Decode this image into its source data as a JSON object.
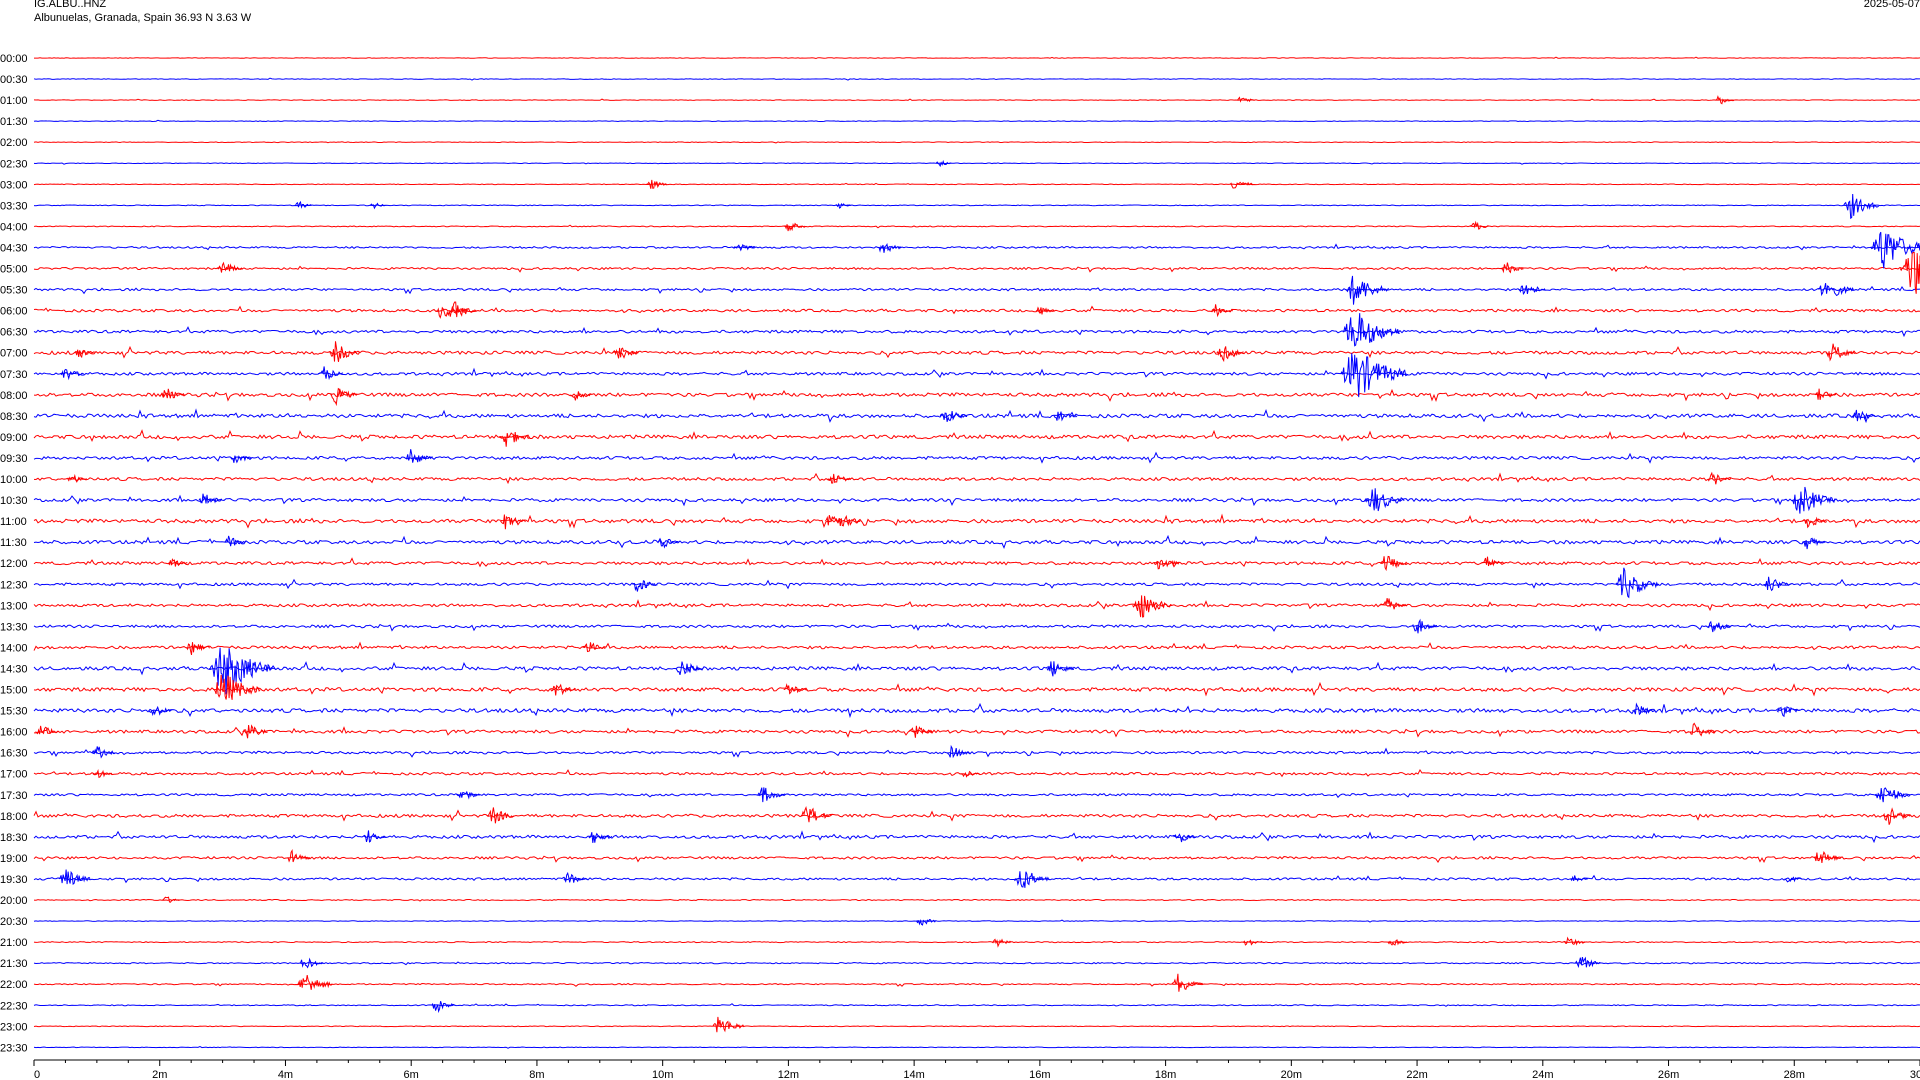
{
  "header": {
    "station": "IG.ALBU..HNZ",
    "location": "Albunuelas, Granada, Spain  36.93 N 3.63 W",
    "date": "2025-05-07"
  },
  "colors": {
    "trace_a": "#ff0000",
    "trace_b": "#0000ff",
    "axis": "#000000",
    "background": "#ffffff"
  },
  "chart_data": {
    "type": "line",
    "title": "",
    "xlabel": "",
    "ylabel": "",
    "xlim": [
      0,
      30
    ],
    "x_unit": "minutes",
    "x_tick_labels": [
      "0",
      "2m",
      "4m",
      "6m",
      "8m",
      "10m",
      "12m",
      "14m",
      "16m",
      "18m",
      "20m",
      "22m",
      "24m",
      "26m",
      "28m",
      "30"
    ],
    "minor_tick_step_min": 0.5,
    "row_interval_min": 30,
    "row_labels": [
      "00:00",
      "00:30",
      "01:00",
      "01:30",
      "02:00",
      "02:30",
      "03:00",
      "03:30",
      "04:00",
      "04:30",
      "05:00",
      "05:30",
      "06:00",
      "06:30",
      "07:00",
      "07:30",
      "08:00",
      "08:30",
      "09:00",
      "09:30",
      "10:00",
      "10:30",
      "11:00",
      "11:30",
      "12:00",
      "12:30",
      "13:00",
      "13:30",
      "14:00",
      "14:30",
      "15:00",
      "15:30",
      "16:00",
      "16:30",
      "17:00",
      "17:30",
      "18:00",
      "18:30",
      "19:00",
      "19:30",
      "20:00",
      "20:30",
      "21:00",
      "21:30",
      "22:00",
      "22:30",
      "23:00",
      "23:30"
    ],
    "row_colors": "alternating red (even rows) / blue (odd rows)",
    "activity_level": [
      0.3,
      0.3,
      0.3,
      0.3,
      0.3,
      0.3,
      0.35,
      0.4,
      0.45,
      0.9,
      1.0,
      1.1,
      1.3,
      1.4,
      1.6,
      1.4,
      1.7,
      1.8,
      1.8,
      1.5,
      1.5,
      1.5,
      1.8,
      1.7,
      1.5,
      1.3,
      1.4,
      1.3,
      1.4,
      1.7,
      1.8,
      1.9,
      1.5,
      1.2,
      1.2,
      1.1,
      1.5,
      1.5,
      1.2,
      1.1,
      0.5,
      0.35,
      0.5,
      0.6,
      0.6,
      0.5,
      0.35,
      0.3
    ],
    "events": [
      {
        "row": "01:00",
        "min": 19.2,
        "amp": 5
      },
      {
        "row": "01:00",
        "min": 26.8,
        "amp": 6
      },
      {
        "row": "02:30",
        "min": 14.4,
        "amp": 4
      },
      {
        "row": "03:00",
        "min": 9.8,
        "amp": 7
      },
      {
        "row": "03:00",
        "min": 19.1,
        "amp": 8
      },
      {
        "row": "03:30",
        "min": 4.2,
        "amp": 5
      },
      {
        "row": "03:30",
        "min": 5.4,
        "amp": 4
      },
      {
        "row": "03:30",
        "min": 12.8,
        "amp": 4
      },
      {
        "row": "03:30",
        "min": 28.9,
        "amp": 14
      },
      {
        "row": "04:00",
        "min": 12.0,
        "amp": 7
      },
      {
        "row": "04:00",
        "min": 22.9,
        "amp": 6
      },
      {
        "row": "04:30",
        "min": 11.2,
        "amp": 7
      },
      {
        "row": "04:30",
        "min": 13.5,
        "amp": 8
      },
      {
        "row": "04:30",
        "min": 29.4,
        "amp": 25
      },
      {
        "row": "05:00",
        "min": 3.0,
        "amp": 9
      },
      {
        "row": "05:00",
        "min": 23.4,
        "amp": 8
      },
      {
        "row": "05:00",
        "min": 29.9,
        "amp": 30
      },
      {
        "row": "05:30",
        "min": 21.0,
        "amp": 18
      },
      {
        "row": "05:30",
        "min": 23.7,
        "amp": 10
      },
      {
        "row": "05:30",
        "min": 28.5,
        "amp": 14
      },
      {
        "row": "06:00",
        "min": 6.5,
        "amp": 12
      },
      {
        "row": "06:00",
        "min": 6.7,
        "amp": 10
      },
      {
        "row": "06:00",
        "min": 16.0,
        "amp": 6
      },
      {
        "row": "06:00",
        "min": 18.8,
        "amp": 7
      },
      {
        "row": "06:30",
        "min": 21.0,
        "amp": 25
      },
      {
        "row": "07:00",
        "min": 0.7,
        "amp": 7
      },
      {
        "row": "07:00",
        "min": 4.8,
        "amp": 12
      },
      {
        "row": "07:00",
        "min": 9.3,
        "amp": 9
      },
      {
        "row": "07:00",
        "min": 18.9,
        "amp": 10
      },
      {
        "row": "07:00",
        "min": 28.6,
        "amp": 11
      },
      {
        "row": "07:30",
        "min": 0.5,
        "amp": 8
      },
      {
        "row": "07:30",
        "min": 4.6,
        "amp": 9
      },
      {
        "row": "07:30",
        "min": 21.0,
        "amp": 30
      },
      {
        "row": "08:00",
        "min": 2.1,
        "amp": 8
      },
      {
        "row": "08:00",
        "min": 4.8,
        "amp": 10
      },
      {
        "row": "08:00",
        "min": 8.6,
        "amp": 7
      },
      {
        "row": "08:00",
        "min": 28.4,
        "amp": 7
      },
      {
        "row": "08:30",
        "min": 14.5,
        "amp": 10
      },
      {
        "row": "08:30",
        "min": 16.3,
        "amp": 8
      },
      {
        "row": "08:30",
        "min": 29.0,
        "amp": 8
      },
      {
        "row": "09:00",
        "min": 7.5,
        "amp": 12
      },
      {
        "row": "09:30",
        "min": 6.0,
        "amp": 10
      },
      {
        "row": "09:30",
        "min": 3.2,
        "amp": 7
      },
      {
        "row": "10:00",
        "min": 0.6,
        "amp": 6
      },
      {
        "row": "10:00",
        "min": 12.7,
        "amp": 8
      },
      {
        "row": "10:00",
        "min": 26.7,
        "amp": 8
      },
      {
        "row": "10:30",
        "min": 2.7,
        "amp": 8
      },
      {
        "row": "10:30",
        "min": 21.3,
        "amp": 16
      },
      {
        "row": "10:30",
        "min": 28.1,
        "amp": 18
      },
      {
        "row": "11:00",
        "min": 7.5,
        "amp": 9
      },
      {
        "row": "11:00",
        "min": 12.7,
        "amp": 14
      },
      {
        "row": "11:00",
        "min": 28.2,
        "amp": 9
      },
      {
        "row": "11:30",
        "min": 3.1,
        "amp": 7
      },
      {
        "row": "11:30",
        "min": 10.0,
        "amp": 7
      },
      {
        "row": "11:30",
        "min": 28.2,
        "amp": 8
      },
      {
        "row": "12:00",
        "min": 2.2,
        "amp": 6
      },
      {
        "row": "12:00",
        "min": 17.9,
        "amp": 9
      },
      {
        "row": "12:00",
        "min": 21.5,
        "amp": 10
      },
      {
        "row": "12:00",
        "min": 23.1,
        "amp": 8
      },
      {
        "row": "12:30",
        "min": 9.6,
        "amp": 9
      },
      {
        "row": "12:30",
        "min": 25.3,
        "amp": 18
      },
      {
        "row": "12:30",
        "min": 27.6,
        "amp": 10
      },
      {
        "row": "13:00",
        "min": 17.6,
        "amp": 16
      },
      {
        "row": "13:00",
        "min": 21.5,
        "amp": 10
      },
      {
        "row": "13:30",
        "min": 22.0,
        "amp": 9
      },
      {
        "row": "13:30",
        "min": 26.7,
        "amp": 8
      },
      {
        "row": "14:00",
        "min": 2.5,
        "amp": 8
      },
      {
        "row": "14:00",
        "min": 8.8,
        "amp": 8
      },
      {
        "row": "14:30",
        "min": 3.0,
        "amp": 30
      },
      {
        "row": "14:30",
        "min": 10.3,
        "amp": 10
      },
      {
        "row": "14:30",
        "min": 16.2,
        "amp": 10
      },
      {
        "row": "15:00",
        "min": 3.0,
        "amp": 20
      },
      {
        "row": "15:00",
        "min": 8.3,
        "amp": 9
      },
      {
        "row": "15:00",
        "min": 12.0,
        "amp": 8
      },
      {
        "row": "15:30",
        "min": 1.9,
        "amp": 8
      },
      {
        "row": "15:30",
        "min": 25.5,
        "amp": 8
      },
      {
        "row": "15:30",
        "min": 27.8,
        "amp": 8
      },
      {
        "row": "16:00",
        "min": 0.1,
        "amp": 8
      },
      {
        "row": "16:00",
        "min": 3.4,
        "amp": 9
      },
      {
        "row": "16:00",
        "min": 14.0,
        "amp": 8
      },
      {
        "row": "16:00",
        "min": 26.4,
        "amp": 10
      },
      {
        "row": "16:30",
        "min": 1.0,
        "amp": 8
      },
      {
        "row": "16:30",
        "min": 14.6,
        "amp": 8
      },
      {
        "row": "17:00",
        "min": 14.8,
        "amp": 6
      },
      {
        "row": "17:00",
        "min": 1.0,
        "amp": 6
      },
      {
        "row": "17:30",
        "min": 6.8,
        "amp": 8
      },
      {
        "row": "17:30",
        "min": 11.6,
        "amp": 10
      },
      {
        "row": "17:30",
        "min": 29.4,
        "amp": 14
      },
      {
        "row": "18:00",
        "min": 7.3,
        "amp": 10
      },
      {
        "row": "18:00",
        "min": 12.3,
        "amp": 12
      },
      {
        "row": "18:00",
        "min": 29.5,
        "amp": 10
      },
      {
        "row": "18:30",
        "min": 5.3,
        "amp": 8
      },
      {
        "row": "18:30",
        "min": 18.2,
        "amp": 8
      },
      {
        "row": "18:30",
        "min": 8.9,
        "amp": 8
      },
      {
        "row": "19:00",
        "min": 28.4,
        "amp": 10
      },
      {
        "row": "19:00",
        "min": 4.1,
        "amp": 8
      },
      {
        "row": "19:30",
        "min": 0.5,
        "amp": 12
      },
      {
        "row": "19:30",
        "min": 8.5,
        "amp": 8
      },
      {
        "row": "19:30",
        "min": 15.7,
        "amp": 14
      },
      {
        "row": "19:30",
        "min": 24.5,
        "amp": 5
      },
      {
        "row": "19:30",
        "min": 27.9,
        "amp": 5
      },
      {
        "row": "20:00",
        "min": 2.1,
        "amp": 5
      },
      {
        "row": "20:30",
        "min": 14.1,
        "amp": 6
      },
      {
        "row": "21:00",
        "min": 15.3,
        "amp": 6
      },
      {
        "row": "21:00",
        "min": 19.3,
        "amp": 6
      },
      {
        "row": "21:00",
        "min": 21.6,
        "amp": 6
      },
      {
        "row": "21:00",
        "min": 24.4,
        "amp": 7
      },
      {
        "row": "21:30",
        "min": 4.3,
        "amp": 8
      },
      {
        "row": "21:30",
        "min": 24.6,
        "amp": 9
      },
      {
        "row": "22:00",
        "min": 4.3,
        "amp": 14
      },
      {
        "row": "22:00",
        "min": 18.2,
        "amp": 12
      },
      {
        "row": "22:30",
        "min": 6.4,
        "amp": 8
      },
      {
        "row": "23:00",
        "min": 10.9,
        "amp": 12
      }
    ]
  }
}
